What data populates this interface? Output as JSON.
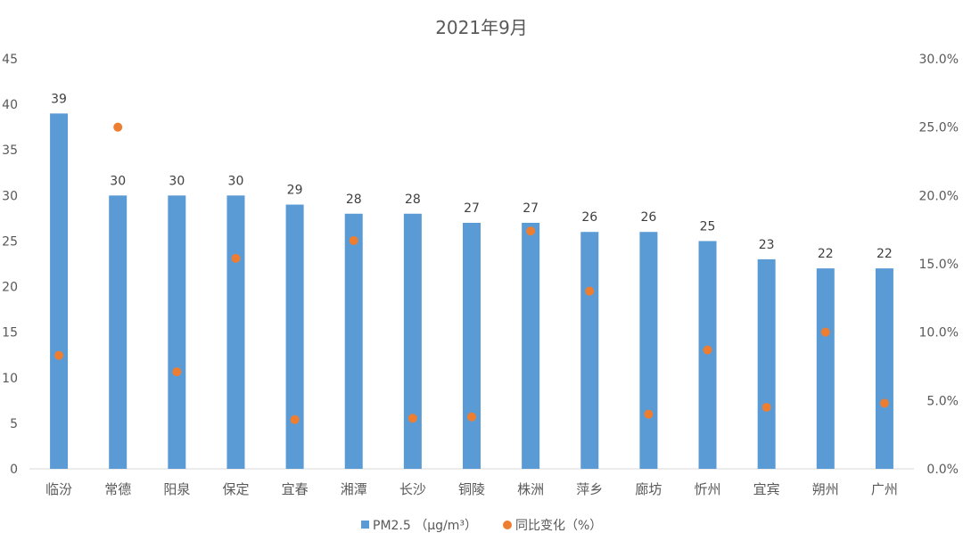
{
  "chart_data": {
    "type": "bar",
    "title": "2021年9月",
    "categories": [
      "临汾",
      "常德",
      "阳泉",
      "保定",
      "宜春",
      "湘潭",
      "长沙",
      "铜陵",
      "株洲",
      "萍乡",
      "廊坊",
      "忻州",
      "宜宾",
      "朔州",
      "广州"
    ],
    "series": [
      {
        "name": "PM2.5 （μg/m³）",
        "type": "bar",
        "axis": "left",
        "color": "#5B9BD5",
        "values": [
          39,
          30,
          30,
          30,
          29,
          28,
          28,
          27,
          27,
          26,
          26,
          25,
          23,
          22,
          22
        ],
        "labels": [
          "39",
          "30",
          "30",
          "30",
          "29",
          "28",
          "28",
          "27",
          "27",
          "26",
          "26",
          "25",
          "23",
          "22",
          "22"
        ]
      },
      {
        "name": "同比变化（%）",
        "type": "scatter",
        "axis": "right",
        "color": "#ED7D31",
        "values": [
          8.3,
          25.0,
          7.1,
          15.4,
          3.6,
          16.7,
          3.7,
          3.8,
          17.4,
          13.0,
          4.0,
          8.7,
          4.5,
          10.0,
          4.8
        ]
      }
    ],
    "y_left": {
      "min": 0,
      "max": 45,
      "ticks": [
        "0",
        "5",
        "10",
        "15",
        "20",
        "25",
        "30",
        "35",
        "40",
        "45"
      ]
    },
    "y_right": {
      "min": 0,
      "max": 30,
      "ticks": [
        "0.0%",
        "5.0%",
        "10.0%",
        "15.0%",
        "20.0%",
        "25.0%",
        "30.0%"
      ]
    },
    "grid": false,
    "legend": "bottom"
  }
}
